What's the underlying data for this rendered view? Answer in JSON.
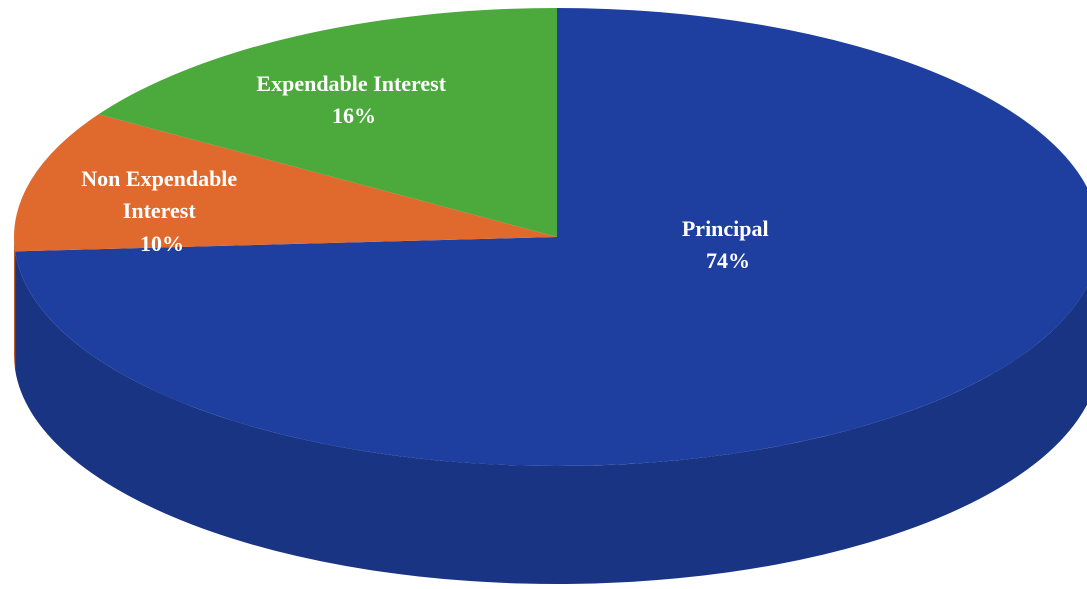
{
  "chart_data": {
    "type": "pie",
    "style": "3d",
    "title": "",
    "slices": [
      {
        "label": "Principal",
        "value": 74,
        "value_text": "74%",
        "color": "#1f3fa0"
      },
      {
        "label": "Non Expendable Interest",
        "value": 10,
        "value_text": "10%",
        "color": "#e06a2e"
      },
      {
        "label": "Expendable Interest",
        "value": 16,
        "value_text": "16%",
        "color": "#4caa3c"
      }
    ],
    "legend": "none"
  }
}
